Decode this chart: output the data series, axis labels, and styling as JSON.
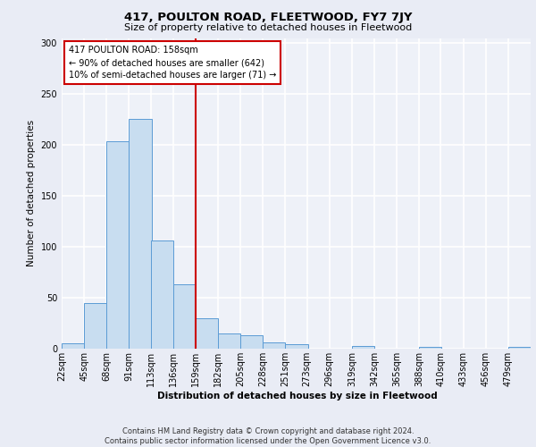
{
  "title": "417, POULTON ROAD, FLEETWOOD, FY7 7JY",
  "subtitle": "Size of property relative to detached houses in Fleetwood",
  "xlabel": "Distribution of detached houses by size in Fleetwood",
  "ylabel": "Number of detached properties",
  "bar_color": "#c8ddf0",
  "bar_edge_color": "#5b9bd5",
  "background_color": "#e9ecf5",
  "plot_bg_color": "#eef1f8",
  "grid_color": "#ffffff",
  "vline_x": 159,
  "vline_color": "#cc0000",
  "annotation_text": "417 POULTON ROAD: 158sqm\n← 90% of detached houses are smaller (642)\n10% of semi-detached houses are larger (71) →",
  "annotation_box_color": "#cc0000",
  "annotation_text_color": "#000000",
  "footer_text": "Contains HM Land Registry data © Crown copyright and database right 2024.\nContains public sector information licensed under the Open Government Licence v3.0.",
  "bin_edges": [
    22,
    45,
    68,
    91,
    113,
    136,
    159,
    182,
    205,
    228,
    251,
    273,
    296,
    319,
    342,
    365,
    388,
    410,
    433,
    456,
    479,
    502
  ],
  "bin_labels": [
    "22sqm",
    "45sqm",
    "68sqm",
    "91sqm",
    "113sqm",
    "136sqm",
    "159sqm",
    "182sqm",
    "205sqm",
    "228sqm",
    "251sqm",
    "273sqm",
    "296sqm",
    "319sqm",
    "342sqm",
    "365sqm",
    "388sqm",
    "410sqm",
    "433sqm",
    "456sqm",
    "479sqm"
  ],
  "counts": [
    5,
    45,
    204,
    226,
    106,
    63,
    30,
    15,
    13,
    6,
    4,
    0,
    0,
    3,
    0,
    0,
    2,
    0,
    0,
    0,
    2
  ],
  "ylim": [
    0,
    305
  ],
  "yticks": [
    0,
    50,
    100,
    150,
    200,
    250,
    300
  ]
}
